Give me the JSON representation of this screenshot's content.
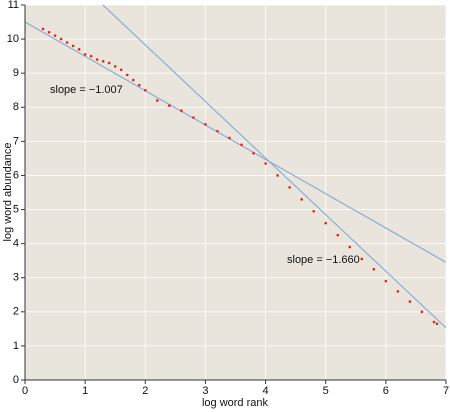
{
  "chart_data": {
    "type": "scatter",
    "x_label": "log word rank",
    "y_label": "log word abundance",
    "xlim": [
      0,
      7
    ],
    "ylim": [
      0,
      11
    ],
    "xticks": [
      0,
      1,
      2,
      3,
      4,
      5,
      6,
      7
    ],
    "yticks": [
      0,
      1,
      2,
      3,
      4,
      5,
      6,
      7,
      8,
      9,
      10,
      11
    ],
    "grid": true,
    "background": "#e9e5dc",
    "series": [
      {
        "color": "#e2231a",
        "x": [
          0.3,
          0.4,
          0.5,
          0.6,
          0.7,
          0.8,
          0.9,
          1.0,
          1.1,
          1.2,
          1.3,
          1.4,
          1.5,
          1.6,
          1.7,
          1.8,
          1.9,
          2.0,
          2.2,
          2.4,
          2.6,
          2.8,
          3.0,
          3.2,
          3.4,
          3.6,
          3.8,
          4.0,
          4.2,
          4.4,
          4.6,
          4.8,
          5.0,
          5.2,
          5.4,
          5.6,
          5.8,
          6.0,
          6.2,
          6.4,
          6.6,
          6.8,
          6.85
        ],
        "values": [
          10.3,
          10.2,
          10.1,
          10.0,
          9.9,
          9.8,
          9.7,
          9.55,
          9.5,
          9.4,
          9.35,
          9.3,
          9.2,
          9.1,
          8.95,
          8.8,
          8.65,
          8.5,
          8.2,
          8.05,
          7.9,
          7.7,
          7.5,
          7.3,
          7.1,
          6.9,
          6.65,
          6.35,
          6.0,
          5.65,
          5.3,
          4.95,
          4.6,
          4.25,
          3.9,
          3.55,
          3.25,
          2.9,
          2.6,
          2.3,
          2.0,
          1.7,
          1.65
        ]
      }
    ],
    "fits": [
      {
        "slope": -1.007,
        "intercept": 10.5,
        "color": "#8aaed4",
        "label": "slope = −1.007"
      },
      {
        "slope": -1.66,
        "intercept": 13.15,
        "color": "#8aaed4",
        "label": "slope = −1.660"
      }
    ]
  }
}
